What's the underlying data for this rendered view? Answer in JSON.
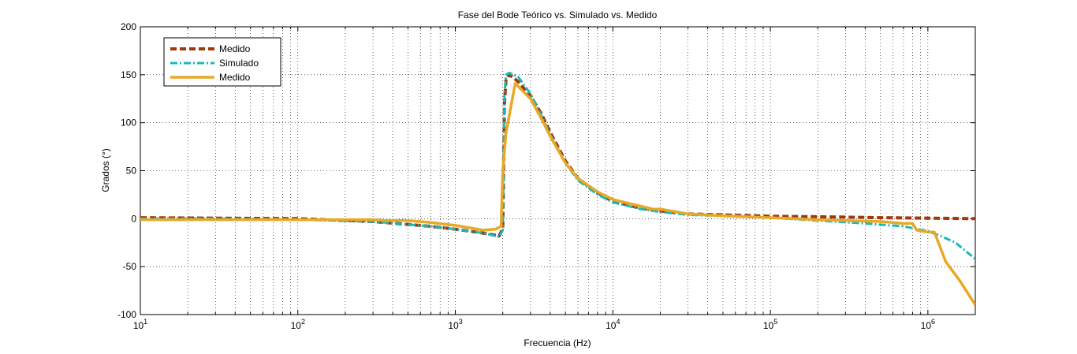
{
  "chart_data": {
    "type": "line",
    "title": "Fase del Bode Teórico vs. Simulado vs. Medido",
    "xlabel": "Frecuencia (Hz)",
    "ylabel": "Grados (°)",
    "xscale": "log",
    "xlim": [
      10,
      2000000
    ],
    "ylim": [
      -100,
      200
    ],
    "grid": true,
    "legend_position": "top-left",
    "x_ticks": [
      {
        "value": 10,
        "base": "10",
        "exp": "1"
      },
      {
        "value": 100,
        "base": "10",
        "exp": "2"
      },
      {
        "value": 1000,
        "base": "10",
        "exp": "3"
      },
      {
        "value": 10000,
        "base": "10",
        "exp": "4"
      },
      {
        "value": 100000,
        "base": "10",
        "exp": "5"
      },
      {
        "value": 1000000,
        "base": "10",
        "exp": "6"
      }
    ],
    "y_ticks": [
      {
        "value": 200,
        "label": "200"
      },
      {
        "value": 150,
        "label": "150"
      },
      {
        "value": 100,
        "label": "100"
      },
      {
        "value": 50,
        "label": "50"
      },
      {
        "value": 0,
        "label": "0"
      },
      {
        "value": -50,
        "label": "-50"
      },
      {
        "value": -100,
        "label": "-100"
      }
    ],
    "series": [
      {
        "name": "Medido",
        "color": "#a0390a",
        "style": "dashed",
        "x": [
          10,
          30,
          100,
          300,
          700,
          1000,
          1500,
          1900,
          2000,
          2050,
          2100,
          2200,
          2500,
          3000,
          3500,
          4000,
          5000,
          6000,
          8000,
          10000,
          15000,
          20000,
          30000,
          50000,
          100000,
          200000,
          500000,
          1000000,
          2000000
        ],
        "y": [
          1,
          0.5,
          0,
          -3,
          -8,
          -11,
          -15,
          -18,
          -10,
          120,
          146,
          150,
          143,
          128,
          110,
          90,
          60,
          42,
          27,
          18,
          11,
          8,
          5,
          4,
          2.5,
          2,
          1,
          0.5,
          0
        ]
      },
      {
        "name": "Simulado",
        "color": "#1ab9b9",
        "style": "dashdot",
        "x": [
          10,
          30,
          100,
          300,
          700,
          1000,
          1500,
          1900,
          2000,
          2050,
          2100,
          2200,
          2500,
          3000,
          3500,
          4000,
          5000,
          6000,
          8000,
          10000,
          15000,
          20000,
          30000,
          50000,
          100000,
          200000,
          400000,
          700000,
          1000000,
          1200000,
          1500000,
          2000000
        ],
        "y": [
          0,
          0,
          -1,
          -3,
          -8,
          -11,
          -15,
          -19,
          -12,
          130,
          150,
          152,
          148,
          130,
          108,
          88,
          58,
          40,
          25,
          17,
          10,
          7,
          4,
          3,
          1,
          -2,
          -5,
          -8,
          -13,
          -18,
          -25,
          -42
        ]
      },
      {
        "name": "Medido",
        "color": "#e9a826",
        "style": "solid",
        "x": [
          10,
          30,
          100,
          200,
          300,
          350,
          500,
          700,
          1000,
          1500,
          1800,
          1950,
          2000,
          2100,
          2400,
          3000,
          3500,
          4000,
          5000,
          6000,
          8000,
          10000,
          15000,
          18000,
          20000,
          30000,
          50000,
          100000,
          200000,
          300000,
          500000,
          700000,
          800000,
          850000,
          1000000,
          1100000,
          1300000,
          1600000,
          2000000
        ],
        "y": [
          -1,
          -1,
          -1,
          -1,
          -1,
          -2,
          -2,
          -4,
          -7,
          -12,
          -11,
          -8,
          50,
          90,
          141,
          125,
          105,
          86,
          58,
          42,
          28,
          20,
          13,
          10,
          10,
          5,
          3,
          1,
          -1,
          -2,
          -3,
          -5,
          -5,
          -12,
          -14,
          -14,
          -45,
          -65,
          -90
        ]
      }
    ]
  }
}
